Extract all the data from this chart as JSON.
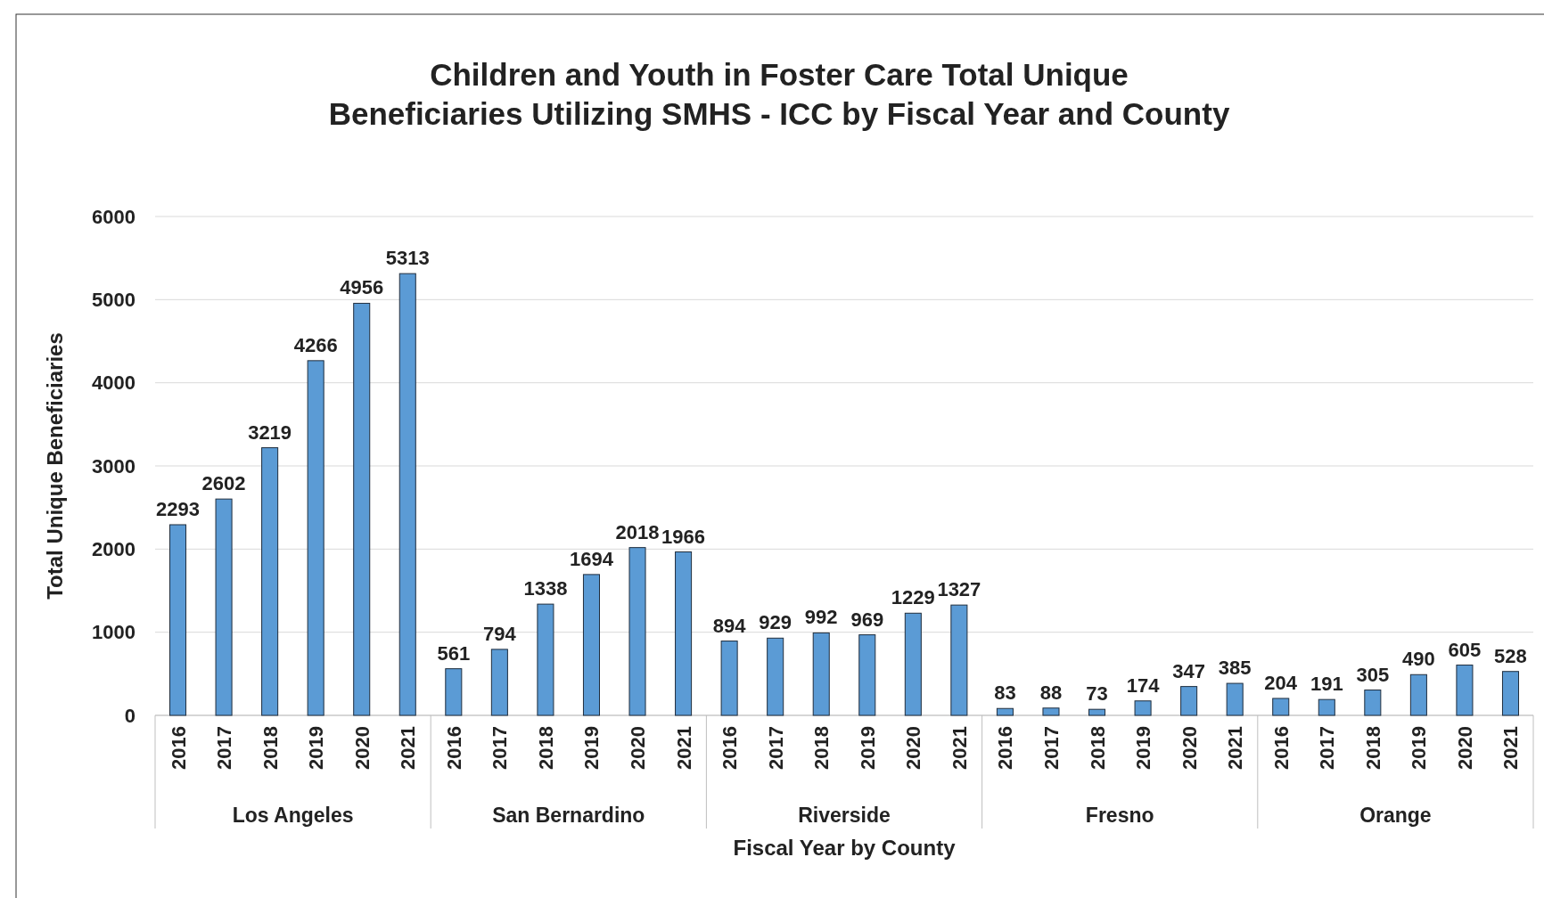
{
  "chart_data": {
    "type": "bar",
    "title": "Children and Youth in Foster Care Total Unique\nBeneficiaries Utilizing SMHS - ICC by Fiscal Year and County",
    "xlabel": "Fiscal Year by County",
    "ylabel": "Total Unique Beneficiaries",
    "categories": [
      "2016",
      "2017",
      "2018",
      "2019",
      "2020",
      "2021",
      "2016",
      "2017",
      "2018",
      "2019",
      "2020",
      "2021",
      "2016",
      "2017",
      "2018",
      "2019",
      "2020",
      "2021",
      "2016",
      "2017",
      "2018",
      "2019",
      "2020",
      "2021",
      "2016",
      "2017",
      "2018",
      "2019",
      "2020",
      "2021"
    ],
    "values": [
      2293,
      2602,
      3219,
      4266,
      4956,
      5313,
      561,
      794,
      1338,
      1694,
      2018,
      1966,
      894,
      929,
      992,
      969,
      1229,
      1327,
      83,
      88,
      73,
      174,
      347,
      385,
      204,
      191,
      305,
      490,
      605,
      528
    ],
    "color": "#5b9bd5",
    "ylim": [
      0,
      6000
    ],
    "yticks": [
      0,
      1000,
      2000,
      3000,
      4000,
      5000,
      6000
    ],
    "grid": "y",
    "data_labels": true,
    "annotations": [
      "Los Angeles",
      "San Bernardino",
      "Riverside",
      "Fresno",
      "Orange"
    ]
  }
}
